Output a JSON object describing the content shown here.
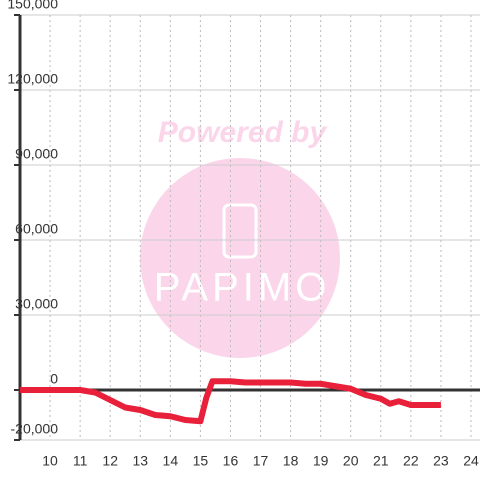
{
  "chart_data": {
    "type": "line",
    "watermark": [
      "Powered by",
      "PAPIMO"
    ],
    "x": [
      9.0,
      11.0,
      11.5,
      12,
      12.5,
      13,
      13.5,
      14,
      14.5,
      15,
      15.2,
      15.4,
      16,
      16.5,
      17,
      18,
      18.5,
      19,
      19.5,
      20,
      20.5,
      21,
      21.3,
      21.6,
      22,
      23
    ],
    "series": [
      {
        "name": "value",
        "color": "#e8203a",
        "values": [
          0,
          0,
          -1000,
          -4000,
          -7000,
          -8000,
          -10000,
          -10500,
          -12000,
          -12500,
          -3000,
          3500,
          3500,
          3000,
          3000,
          3000,
          2500,
          2500,
          1500,
          500,
          -2000,
          -3500,
          -5500,
          -4500,
          -6000,
          -6000
        ]
      }
    ],
    "xlim": [
      9.0,
      24.3
    ],
    "xticks": [
      10,
      11,
      12,
      13,
      14,
      15,
      16,
      17,
      18,
      19,
      20,
      21,
      22,
      23,
      24
    ],
    "ylim": [
      -20000,
      150000
    ],
    "yticks": [
      {
        "value": -20000,
        "label": "-20,000"
      },
      0,
      {
        "value": 30000,
        "label": "30,000"
      },
      {
        "value": 60000,
        "label": "60,000"
      },
      {
        "value": 90000,
        "label": "90,000"
      },
      {
        "value": 120000,
        "label": "120,000"
      },
      {
        "value": 150000,
        "label": "150,000"
      }
    ],
    "grid": true
  }
}
